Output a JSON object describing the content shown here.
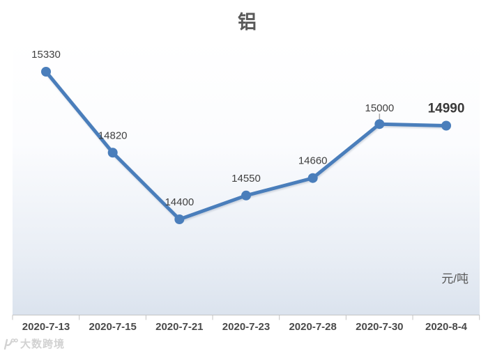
{
  "title": "铝",
  "unit_label": "元/吨",
  "watermark_text": "大数跨境",
  "colors": {
    "line": "#4a7ebb",
    "marker": "#4a7ebb",
    "data_label": "#404040",
    "emphasized_label": "#3a3a3a",
    "axis": "#c3c3c3",
    "leader_line": "#a6a6a6",
    "title_text": "#595959",
    "x_label_text": "#4a4a4a",
    "watermark": "#d2d2d2"
  },
  "chart_data": {
    "type": "line",
    "title": "铝",
    "categories": [
      "2020-7-13",
      "2020-7-15",
      "2020-7-21",
      "2020-7-23",
      "2020-7-28",
      "2020-7-30",
      "2020-8-4"
    ],
    "series": [
      {
        "name": "铝",
        "values": [
          15330,
          14820,
          14400,
          14550,
          14660,
          15000,
          14990
        ]
      }
    ],
    "data_labels_shown": true,
    "emphasized_point_index": 6,
    "leader_line_point_index": 5,
    "xlabel": "",
    "ylabel": "元/吨",
    "ylim": [
      14300,
      15500
    ],
    "grid": false,
    "legend_position": "none"
  }
}
